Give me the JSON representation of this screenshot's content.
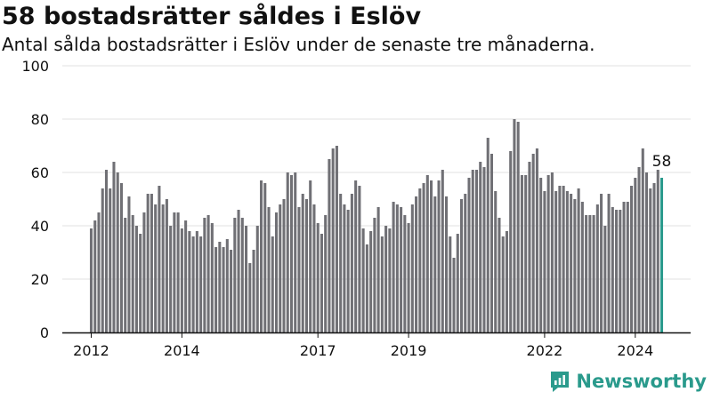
{
  "title": "58 bostadsrätter såldes i Eslöv",
  "subtitle": "Antal sålda bostadsrätter i Eslöv under de senaste tre månaderna.",
  "brand": {
    "name": "Newsworthy",
    "color": "#2a9a8c"
  },
  "colors": {
    "bar": "#707075",
    "highlight": "#2a9a8c",
    "grid": "#e0e0e0",
    "axis": "#111111"
  },
  "chart_data": {
    "type": "bar",
    "x_start": "2012-01",
    "x_end": "2024-12",
    "x_tick_labels": [
      "2012",
      "2014",
      "2017",
      "2019",
      "2022",
      "2024"
    ],
    "x_tick_positions": [
      "2012-01",
      "2014-01",
      "2017-01",
      "2019-01",
      "2022-01",
      "2024-01"
    ],
    "ylim": [
      0,
      100
    ],
    "y_ticks": [
      0,
      20,
      40,
      60,
      80,
      100
    ],
    "grid": true,
    "values": [
      39,
      42,
      45,
      54,
      61,
      54,
      64,
      60,
      56,
      43,
      51,
      44,
      40,
      37,
      45,
      52,
      52,
      48,
      55,
      48,
      50,
      40,
      45,
      45,
      39,
      42,
      38,
      36,
      38,
      36,
      43,
      44,
      41,
      32,
      34,
      32,
      35,
      31,
      43,
      46,
      43,
      40,
      26,
      31,
      40,
      57,
      56,
      47,
      36,
      45,
      48,
      50,
      60,
      59,
      60,
      47,
      52,
      50,
      57,
      48,
      41,
      37,
      44,
      65,
      69,
      70,
      52,
      48,
      46,
      52,
      57,
      55,
      39,
      33,
      38,
      43,
      47,
      36,
      40,
      39,
      49,
      48,
      47,
      44,
      41,
      48,
      51,
      54,
      56,
      59,
      57,
      51,
      57,
      61,
      51,
      36,
      28,
      37,
      50,
      52,
      58,
      61,
      61,
      64,
      62,
      73,
      67,
      53,
      43,
      36,
      38,
      68,
      80,
      79,
      59,
      59,
      64,
      67,
      69,
      58,
      53,
      59,
      60,
      53,
      55,
      55,
      53,
      52,
      50,
      54,
      49,
      44,
      44,
      44,
      48,
      52,
      40,
      52,
      47,
      46,
      46,
      49,
      49,
      55,
      58,
      62,
      69,
      60,
      54,
      56,
      61,
      58
    ],
    "highlight_last": true,
    "annotation": {
      "label": "58"
    }
  }
}
